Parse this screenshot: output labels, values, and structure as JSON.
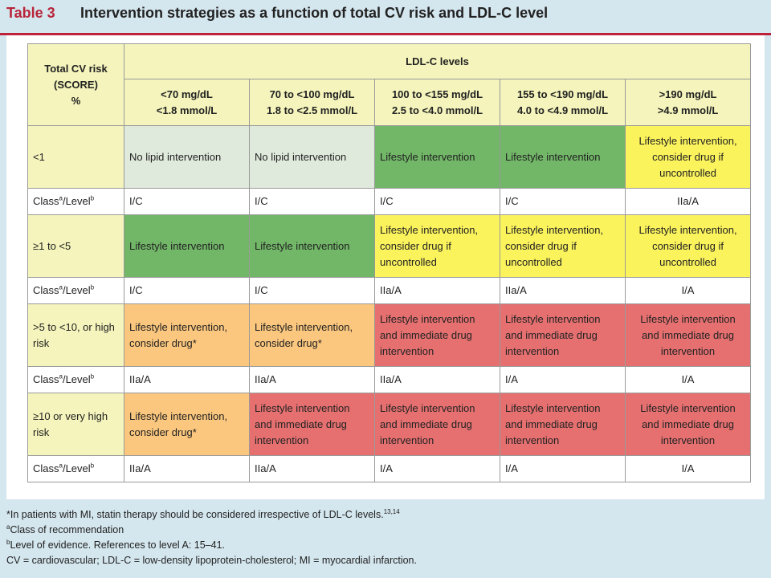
{
  "header": {
    "label": "Table 3",
    "title": "Intervention strategies as a function of total CV risk and LDL-C level"
  },
  "table": {
    "corner_header": [
      "Total CV risk",
      "(SCORE)",
      "%"
    ],
    "group_header": "LDL-C levels",
    "columns": [
      [
        "<70 mg/dL",
        "<1.8 mmol/L"
      ],
      [
        "70 to <100 mg/dL",
        "1.8 to <2.5 mmol/L"
      ],
      [
        "100 to <155 mg/dL",
        "2.5 to <4.0 mmol/L"
      ],
      [
        "155 to <190 mg/dL",
        "4.0 to <4.9 mmol/L"
      ],
      [
        ">190 mg/dL",
        ">4.9 mmol/L"
      ]
    ],
    "class_label_prefix": "Class",
    "class_label_sup_a": "a",
    "class_label_mid": "/Level",
    "class_label_sup_b": "b",
    "rows": [
      {
        "risk": "<1",
        "cells": [
          {
            "text": "No lipid intervention",
            "color": "#e0eadc"
          },
          {
            "text": "No lipid intervention",
            "color": "#e0eadc"
          },
          {
            "text": "Lifestyle intervention",
            "color": "#72b768"
          },
          {
            "text": "Lifestyle intervention",
            "color": "#72b768"
          },
          {
            "text": "Lifestyle intervention, consider drug if uncontrolled",
            "color": "#fbf35c"
          }
        ],
        "classes": [
          "I/C",
          "I/C",
          "I/C",
          "I/C",
          "IIa/A"
        ]
      },
      {
        "risk": "≥1 to <5",
        "cells": [
          {
            "text": "Lifestyle intervention",
            "color": "#72b768"
          },
          {
            "text": "Lifestyle intervention",
            "color": "#72b768"
          },
          {
            "text": "Lifestyle intervention, consider drug if uncontrolled",
            "color": "#fbf35c"
          },
          {
            "text": "Lifestyle intervention, consider drug if uncontrolled",
            "color": "#fbf35c"
          },
          {
            "text": "Lifestyle intervention, consider drug if uncontrolled",
            "color": "#fbf35c"
          }
        ],
        "classes": [
          "I/C",
          "I/C",
          "IIa/A",
          "IIa/A",
          "I/A"
        ]
      },
      {
        "risk": ">5 to <10, or high risk",
        "cells": [
          {
            "text": "Lifestyle intervention, consider drug*",
            "color": "#fbc77e"
          },
          {
            "text": "Lifestyle intervention, consider drug*",
            "color": "#fbc77e"
          },
          {
            "text": "Lifestyle intervention and immediate drug intervention",
            "color": "#e67070"
          },
          {
            "text": "Lifestyle intervention and immediate drug intervention",
            "color": "#e67070"
          },
          {
            "text": "Lifestyle intervention and immediate drug intervention",
            "color": "#e67070"
          }
        ],
        "classes": [
          "IIa/A",
          "IIa/A",
          "IIa/A",
          "I/A",
          "I/A"
        ]
      },
      {
        "risk": "≥10 or very high risk",
        "cells": [
          {
            "text": "Lifestyle intervention, consider drug*",
            "color": "#fbc77e"
          },
          {
            "text": "Lifestyle intervention and immediate drug intervention",
            "color": "#e67070"
          },
          {
            "text": "Lifestyle intervention and immediate drug intervention",
            "color": "#e67070"
          },
          {
            "text": "Lifestyle intervention and immediate drug intervention",
            "color": "#e67070"
          },
          {
            "text": "Lifestyle intervention and immediate drug intervention",
            "color": "#e67070"
          }
        ],
        "classes": [
          "IIa/A",
          "IIa/A",
          "I/A",
          "I/A",
          "I/A"
        ]
      }
    ]
  },
  "footnotes": {
    "star": "*In patients with MI, statin therapy should be considered irrespective of LDL-C levels.",
    "star_ref": "13,14",
    "a_sup": "a",
    "a": "Class of recommendation",
    "b_sup": "b",
    "b": "Level of evidence. References to level A: 15–41.",
    "abbrev": "CV = cardiovascular; LDL-C = low-density lipoprotein-cholesterol; MI = myocardial infarction."
  },
  "colors": {
    "title_accent": "#c0213a",
    "background": "#d4e6ee",
    "header_fill": "#f4f4bc",
    "no_intervention": "#e0eadc",
    "lifestyle": "#72b768",
    "consider_drug_if_uncontrolled": "#fbf35c",
    "consider_drug": "#fbc77e",
    "immediate_drug": "#e67070"
  }
}
